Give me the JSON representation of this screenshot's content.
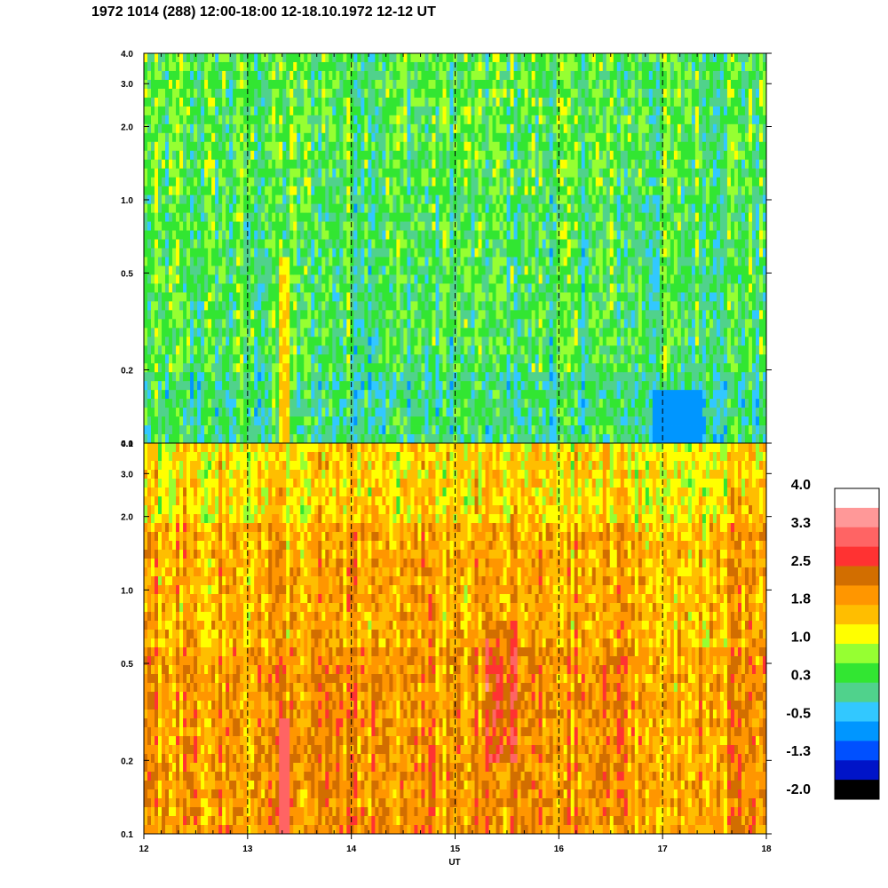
{
  "chart_data": {
    "type": "heatmap",
    "title": "1972 1014 (288) 12:00-18:00 12-18.10.1972  12-12 UT",
    "xlabel": "UT",
    "x_ticks": [
      "12",
      "13",
      "14",
      "15",
      "16",
      "17",
      "18"
    ],
    "xlim": [
      12,
      18
    ],
    "y_scale": "log",
    "ylim": [
      0.1,
      4.0
    ],
    "y_ticks": [
      {
        "value": 4.0,
        "label": "4.0"
      },
      {
        "value": 3.0,
        "label": "3.0"
      },
      {
        "value": 2.0,
        "label": "2.0"
      },
      {
        "value": 1.0,
        "label": "1.0"
      },
      {
        "value": 0.5,
        "label": "0.5"
      },
      {
        "value": 0.2,
        "label": "0.2"
      },
      {
        "value": 0.1,
        "label": "0.1"
      }
    ],
    "dashed_hours": [
      13,
      14,
      15,
      16,
      17
    ],
    "panels": [
      {
        "name": "upper",
        "dominant_level": 0.3,
        "note_levels": {
          "yellow_band_at_UT": 13.35
        }
      },
      {
        "name": "lower",
        "dominant_level": 1.8,
        "note_levels": {
          "red_band_at_UT": 13.35
        }
      }
    ],
    "colorbar": {
      "labels": [
        "4.0",
        "3.3",
        "2.5",
        "1.8",
        "1.0",
        "0.3",
        "-0.5",
        "-1.3",
        "-2.0"
      ],
      "colors": [
        "#ffffff",
        "#ff9898",
        "#ff6464",
        "#ff3232",
        "#d26e00",
        "#ff9600",
        "#ffbe00",
        "#ffff00",
        "#96ff32",
        "#32e632",
        "#50d28c",
        "#32c8ff",
        "#0096ff",
        "#0050ff",
        "#0014c8",
        "#000000"
      ]
    }
  }
}
